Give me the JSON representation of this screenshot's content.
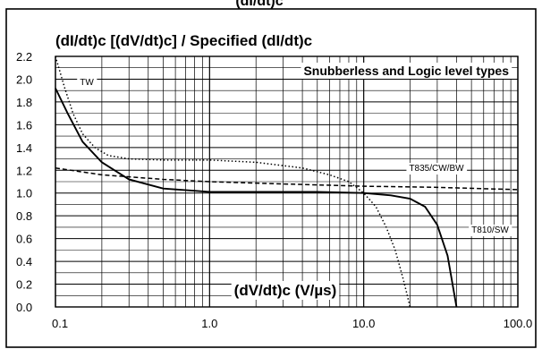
{
  "chart_data": {
    "type": "line",
    "title": "(dI/dt)c [(dV/dt)c] / Specified (dI/dt)c",
    "header_fragment": "(dI/dt)c",
    "xlabel": "(dV/dt)c (V/µs)",
    "ylabel": "",
    "xscale": "log",
    "xlim": [
      0.1,
      100.0
    ],
    "ylim": [
      0.0,
      2.2
    ],
    "grid": true,
    "x_tick_labels": [
      "0.1",
      "1.0",
      "10.0",
      "100.0"
    ],
    "y_tick_labels": [
      "0.0",
      "0.2",
      "0.4",
      "0.6",
      "0.8",
      "1.0",
      "1.2",
      "1.4",
      "1.6",
      "1.8",
      "2.0",
      "2.2"
    ],
    "annotation": "Snubberless and Logic level types",
    "series": [
      {
        "name": "TW",
        "style": "dotted",
        "points": [
          [
            0.1,
            2.2
          ],
          [
            0.115,
            1.92
          ],
          [
            0.13,
            1.7
          ],
          [
            0.15,
            1.52
          ],
          [
            0.18,
            1.4
          ],
          [
            0.22,
            1.33
          ],
          [
            0.3,
            1.3
          ],
          [
            0.5,
            1.29
          ],
          [
            1.0,
            1.29
          ],
          [
            2.0,
            1.27
          ],
          [
            4.0,
            1.22
          ],
          [
            6.0,
            1.16
          ],
          [
            8.0,
            1.1
          ],
          [
            10.0,
            1.0
          ],
          [
            12.0,
            0.88
          ],
          [
            14.0,
            0.7
          ],
          [
            16.0,
            0.5
          ],
          [
            18.0,
            0.25
          ],
          [
            20.0,
            0.0
          ]
        ]
      },
      {
        "name": "T810/SW",
        "style": "solid",
        "points": [
          [
            0.1,
            1.92
          ],
          [
            0.12,
            1.7
          ],
          [
            0.15,
            1.45
          ],
          [
            0.2,
            1.27
          ],
          [
            0.3,
            1.12
          ],
          [
            0.5,
            1.04
          ],
          [
            0.8,
            1.02
          ],
          [
            1.0,
            1.01
          ],
          [
            2.0,
            1.01
          ],
          [
            5.0,
            1.01
          ],
          [
            10.0,
            1.0
          ],
          [
            15.0,
            0.98
          ],
          [
            20.0,
            0.95
          ],
          [
            25.0,
            0.88
          ],
          [
            30.0,
            0.72
          ],
          [
            35.0,
            0.45
          ],
          [
            40.0,
            0.0
          ]
        ]
      },
      {
        "name": "T835/CW/BW",
        "style": "dashed",
        "points": [
          [
            0.1,
            1.22
          ],
          [
            0.2,
            1.16
          ],
          [
            0.5,
            1.12
          ],
          [
            1.0,
            1.1
          ],
          [
            3.0,
            1.08
          ],
          [
            10.0,
            1.06
          ],
          [
            30.0,
            1.05
          ],
          [
            100.0,
            1.03
          ]
        ]
      }
    ]
  }
}
